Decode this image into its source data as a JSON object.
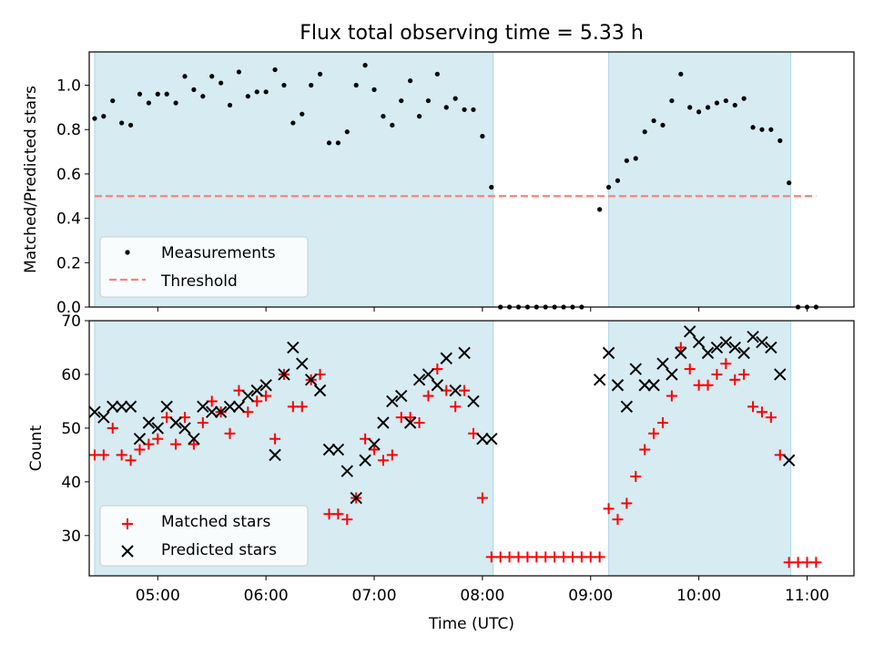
{
  "chart_data": [
    {
      "type": "scatter",
      "title": "Flux total observing time = 5.33 h",
      "xlabel": "",
      "ylabel": "Matched/Predicted stars",
      "xlim": [
        "04:22",
        "11:26"
      ],
      "ylim": [
        0,
        1.15
      ],
      "yticks": [
        "0.0",
        "0.2",
        "0.4",
        "0.6",
        "0.8",
        "1.0"
      ],
      "shaded_intervals": [
        [
          "04:25",
          "08:06"
        ],
        [
          "09:10",
          "10:51"
        ]
      ],
      "threshold": {
        "name": "Threshold",
        "value": 0.5,
        "x_range": [
          "04:25",
          "11:05"
        ],
        "color": "#ff7f7f",
        "style": "dashed"
      },
      "series": [
        {
          "name": "Measurements",
          "marker": "dot",
          "color": "#000000",
          "points": [
            [
              "04:25",
              0.85
            ],
            [
              "04:30",
              0.86
            ],
            [
              "04:35",
              0.93
            ],
            [
              "04:40",
              0.83
            ],
            [
              "04:45",
              0.82
            ],
            [
              "04:50",
              0.96
            ],
            [
              "04:55",
              0.92
            ],
            [
              "05:00",
              0.96
            ],
            [
              "05:05",
              0.96
            ],
            [
              "05:10",
              0.92
            ],
            [
              "05:15",
              1.04
            ],
            [
              "05:20",
              0.98
            ],
            [
              "05:25",
              0.95
            ],
            [
              "05:30",
              1.04
            ],
            [
              "05:35",
              1.01
            ],
            [
              "05:40",
              0.91
            ],
            [
              "05:45",
              1.06
            ],
            [
              "05:50",
              0.95
            ],
            [
              "05:55",
              0.97
            ],
            [
              "06:00",
              0.97
            ],
            [
              "06:05",
              1.07
            ],
            [
              "06:10",
              1.0
            ],
            [
              "06:15",
              0.83
            ],
            [
              "06:20",
              0.87
            ],
            [
              "06:25",
              1.0
            ],
            [
              "06:30",
              1.05
            ],
            [
              "06:35",
              0.74
            ],
            [
              "06:40",
              0.74
            ],
            [
              "06:45",
              0.79
            ],
            [
              "06:50",
              1.0
            ],
            [
              "06:55",
              1.09
            ],
            [
              "07:00",
              0.98
            ],
            [
              "07:05",
              0.86
            ],
            [
              "07:10",
              0.82
            ],
            [
              "07:15",
              0.93
            ],
            [
              "07:20",
              1.02
            ],
            [
              "07:25",
              0.86
            ],
            [
              "07:30",
              0.93
            ],
            [
              "07:35",
              1.05
            ],
            [
              "07:40",
              0.9
            ],
            [
              "07:45",
              0.94
            ],
            [
              "07:50",
              0.89
            ],
            [
              "07:55",
              0.89
            ],
            [
              "08:00",
              0.77
            ],
            [
              "08:05",
              0.54
            ],
            [
              "08:10",
              0
            ],
            [
              "08:15",
              0
            ],
            [
              "08:20",
              0
            ],
            [
              "08:25",
              0
            ],
            [
              "08:30",
              0
            ],
            [
              "08:35",
              0
            ],
            [
              "08:40",
              0
            ],
            [
              "08:45",
              0
            ],
            [
              "08:50",
              0
            ],
            [
              "08:55",
              0
            ],
            [
              "09:05",
              0.44
            ],
            [
              "09:10",
              0.54
            ],
            [
              "09:15",
              0.57
            ],
            [
              "09:20",
              0.66
            ],
            [
              "09:25",
              0.67
            ],
            [
              "09:30",
              0.79
            ],
            [
              "09:35",
              0.84
            ],
            [
              "09:40",
              0.82
            ],
            [
              "09:45",
              0.93
            ],
            [
              "09:50",
              1.05
            ],
            [
              "09:55",
              0.9
            ],
            [
              "10:00",
              0.88
            ],
            [
              "10:05",
              0.9
            ],
            [
              "10:10",
              0.92
            ],
            [
              "10:15",
              0.93
            ],
            [
              "10:20",
              0.91
            ],
            [
              "10:25",
              0.94
            ],
            [
              "10:30",
              0.81
            ],
            [
              "10:35",
              0.8
            ],
            [
              "10:40",
              0.8
            ],
            [
              "10:45",
              0.75
            ],
            [
              "10:50",
              0.56
            ],
            [
              "10:55",
              0
            ],
            [
              "11:00",
              0
            ],
            [
              "11:05",
              0
            ]
          ]
        }
      ],
      "legend": {
        "position": "lower-left",
        "entries": [
          "Measurements",
          "Threshold"
        ]
      }
    },
    {
      "type": "scatter",
      "title": "",
      "xlabel": "Time (UTC)",
      "ylabel": "Count",
      "xlim": [
        "04:22",
        "11:26"
      ],
      "ylim": [
        22.5,
        70
      ],
      "xticks": [
        "05:00",
        "06:00",
        "07:00",
        "08:00",
        "09:00",
        "10:00",
        "11:00"
      ],
      "yticks": [
        "30",
        "40",
        "50",
        "60",
        "70"
      ],
      "shaded_intervals": [
        [
          "04:25",
          "08:06"
        ],
        [
          "09:10",
          "10:51"
        ]
      ],
      "series": [
        {
          "name": "Matched stars",
          "marker": "plus",
          "color": "#ff0000",
          "points": [
            [
              "04:25",
              45
            ],
            [
              "04:30",
              45
            ],
            [
              "04:35",
              50
            ],
            [
              "04:40",
              45
            ],
            [
              "04:45",
              44
            ],
            [
              "04:50",
              46
            ],
            [
              "04:55",
              47
            ],
            [
              "05:00",
              48
            ],
            [
              "05:05",
              52
            ],
            [
              "05:10",
              47
            ],
            [
              "05:15",
              52
            ],
            [
              "05:20",
              47
            ],
            [
              "05:25",
              51
            ],
            [
              "05:30",
              55
            ],
            [
              "05:35",
              53
            ],
            [
              "05:40",
              49
            ],
            [
              "05:45",
              57
            ],
            [
              "05:50",
              53
            ],
            [
              "05:55",
              55
            ],
            [
              "06:00",
              56
            ],
            [
              "06:05",
              48
            ],
            [
              "06:10",
              60
            ],
            [
              "06:15",
              54
            ],
            [
              "06:20",
              54
            ],
            [
              "06:25",
              59
            ],
            [
              "06:30",
              60
            ],
            [
              "06:35",
              34
            ],
            [
              "06:40",
              34
            ],
            [
              "06:45",
              33
            ],
            [
              "06:50",
              37
            ],
            [
              "06:55",
              48
            ],
            [
              "07:00",
              46
            ],
            [
              "07:05",
              44
            ],
            [
              "07:10",
              45
            ],
            [
              "07:15",
              52
            ],
            [
              "07:20",
              52
            ],
            [
              "07:25",
              51
            ],
            [
              "07:30",
              56
            ],
            [
              "07:35",
              61
            ],
            [
              "07:40",
              57
            ],
            [
              "07:45",
              54
            ],
            [
              "07:50",
              57
            ],
            [
              "07:55",
              49
            ],
            [
              "08:00",
              37
            ],
            [
              "08:05",
              26
            ],
            [
              "08:10",
              26
            ],
            [
              "08:15",
              26
            ],
            [
              "08:20",
              26
            ],
            [
              "08:25",
              26
            ],
            [
              "08:30",
              26
            ],
            [
              "08:35",
              26
            ],
            [
              "08:40",
              26
            ],
            [
              "08:45",
              26
            ],
            [
              "08:50",
              26
            ],
            [
              "08:55",
              26
            ],
            [
              "09:00",
              26
            ],
            [
              "09:05",
              26
            ],
            [
              "09:10",
              35
            ],
            [
              "09:15",
              33
            ],
            [
              "09:20",
              36
            ],
            [
              "09:25",
              41
            ],
            [
              "09:30",
              46
            ],
            [
              "09:35",
              49
            ],
            [
              "09:40",
              51
            ],
            [
              "09:45",
              56
            ],
            [
              "09:50",
              65
            ],
            [
              "09:55",
              61
            ],
            [
              "10:00",
              58
            ],
            [
              "10:05",
              58
            ],
            [
              "10:10",
              60
            ],
            [
              "10:15",
              62
            ],
            [
              "10:20",
              59
            ],
            [
              "10:25",
              60
            ],
            [
              "10:30",
              54
            ],
            [
              "10:35",
              53
            ],
            [
              "10:40",
              52
            ],
            [
              "10:45",
              45
            ],
            [
              "10:50",
              25
            ],
            [
              "10:55",
              25
            ],
            [
              "11:00",
              25
            ],
            [
              "11:05",
              25
            ]
          ]
        },
        {
          "name": "Predicted stars",
          "marker": "x",
          "color": "#000000",
          "points": [
            [
              "04:25",
              53
            ],
            [
              "04:30",
              52
            ],
            [
              "04:35",
              54
            ],
            [
              "04:40",
              54
            ],
            [
              "04:45",
              54
            ],
            [
              "04:50",
              48
            ],
            [
              "04:55",
              51
            ],
            [
              "05:00",
              50
            ],
            [
              "05:05",
              54
            ],
            [
              "05:10",
              51
            ],
            [
              "05:15",
              50
            ],
            [
              "05:20",
              48
            ],
            [
              "05:25",
              54
            ],
            [
              "05:30",
              53
            ],
            [
              "05:35",
              53
            ],
            [
              "05:40",
              54
            ],
            [
              "05:45",
              54
            ],
            [
              "05:50",
              56
            ],
            [
              "05:55",
              57
            ],
            [
              "06:00",
              58
            ],
            [
              "06:05",
              45
            ],
            [
              "06:10",
              60
            ],
            [
              "06:15",
              65
            ],
            [
              "06:20",
              62
            ],
            [
              "06:25",
              59
            ],
            [
              "06:30",
              57
            ],
            [
              "06:35",
              46
            ],
            [
              "06:40",
              46
            ],
            [
              "06:45",
              42
            ],
            [
              "06:50",
              37
            ],
            [
              "06:55",
              44
            ],
            [
              "07:00",
              47
            ],
            [
              "07:05",
              51
            ],
            [
              "07:10",
              55
            ],
            [
              "07:15",
              56
            ],
            [
              "07:20",
              51
            ],
            [
              "07:25",
              59
            ],
            [
              "07:30",
              60
            ],
            [
              "07:35",
              58
            ],
            [
              "07:40",
              63
            ],
            [
              "07:45",
              57
            ],
            [
              "07:50",
              64
            ],
            [
              "07:55",
              55
            ],
            [
              "08:00",
              48
            ],
            [
              "08:05",
              48
            ],
            [
              "09:05",
              59
            ],
            [
              "09:10",
              64
            ],
            [
              "09:15",
              58
            ],
            [
              "09:20",
              54
            ],
            [
              "09:25",
              61
            ],
            [
              "09:30",
              58
            ],
            [
              "09:35",
              58
            ],
            [
              "09:40",
              62
            ],
            [
              "09:45",
              60
            ],
            [
              "09:50",
              64
            ],
            [
              "09:55",
              68
            ],
            [
              "10:00",
              66
            ],
            [
              "10:05",
              64
            ],
            [
              "10:10",
              65
            ],
            [
              "10:15",
              66
            ],
            [
              "10:20",
              65
            ],
            [
              "10:25",
              64
            ],
            [
              "10:30",
              67
            ],
            [
              "10:35",
              66
            ],
            [
              "10:40",
              65
            ],
            [
              "10:45",
              60
            ],
            [
              "10:50",
              44
            ]
          ]
        }
      ],
      "legend": {
        "position": "lower-left",
        "entries": [
          "Matched stars",
          "Predicted stars"
        ]
      }
    }
  ],
  "colors": {
    "shade": "#add8e6",
    "matched": "#ff0000",
    "predicted": "#000000",
    "measurements": "#000000",
    "threshold": "#ff7f7f"
  }
}
